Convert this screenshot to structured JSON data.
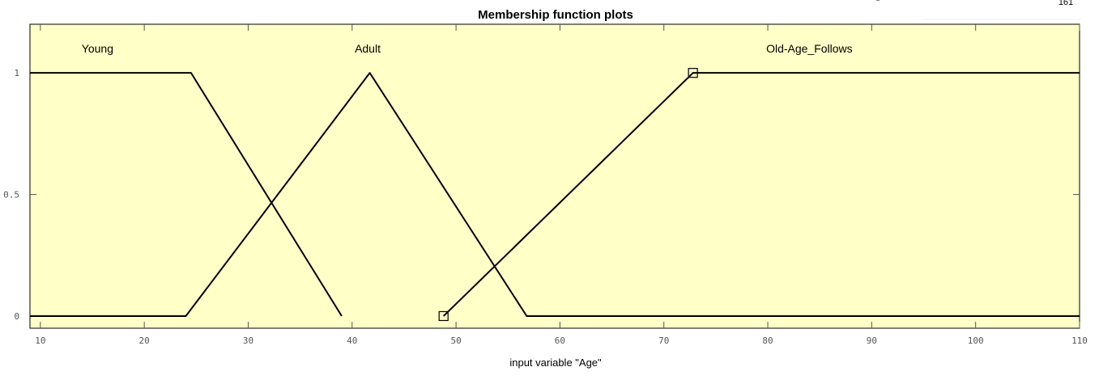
{
  "page": {
    "corner_text": "161",
    "colors": {
      "plot_background": "#ffffc8",
      "line": "#000000",
      "axis_tick_text": "#555555"
    }
  },
  "chart_data": {
    "type": "line",
    "title": "Membership function plots",
    "xlabel": "input variable \"Age\"",
    "ylabel": "",
    "xlim": [
      9,
      110
    ],
    "ylim": [
      -0.05,
      1.2
    ],
    "x_ticks": [
      10,
      20,
      30,
      40,
      50,
      60,
      70,
      80,
      90,
      100,
      110
    ],
    "y_ticks": [
      0,
      0.5,
      1
    ],
    "y_tick_labels": [
      "0",
      "0.5",
      "1"
    ],
    "grid": false,
    "series": [
      {
        "name": "Young",
        "x": [
          9,
          24.5,
          39
        ],
        "y": [
          1,
          1,
          0
        ],
        "label_x": 15.5,
        "label_y": 1.1
      },
      {
        "name": "Adult",
        "x": [
          9,
          24,
          41.7,
          56.8,
          110
        ],
        "y": [
          0,
          0,
          1,
          0,
          0
        ],
        "label_x": 41.5,
        "label_y": 1.1
      },
      {
        "name": "Old-Age_Follows",
        "x": [
          48.8,
          72.8,
          110
        ],
        "y": [
          0,
          1,
          1
        ],
        "label_x": 84,
        "label_y": 1.1,
        "selected": true,
        "markers": [
          [
            48.8,
            0
          ],
          [
            72.8,
            1
          ]
        ]
      }
    ]
  }
}
